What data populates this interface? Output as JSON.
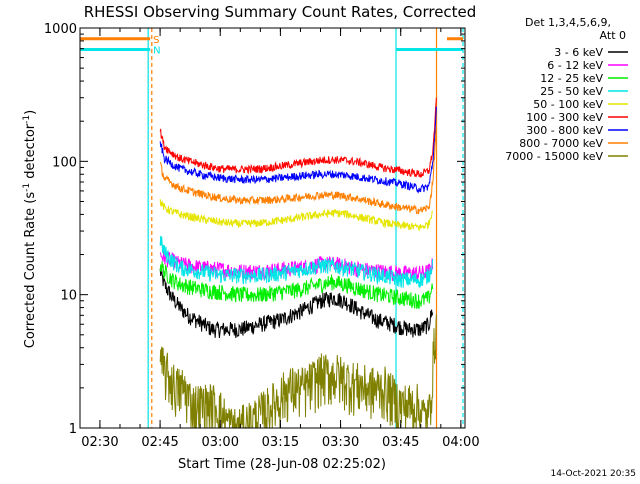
{
  "chart_data": {
    "type": "line",
    "title": "RHESSI Observing Summary Count Rates, Corrected",
    "xlabel": "Start Time (28-Jun-08 02:25:02)",
    "ylabel_main": "Corrected Count Rate (s",
    "ylabel_sup1": "-1",
    "ylabel_mid": " detector",
    "ylabel_sup2": "-1",
    "ylabel_end": ")",
    "y_scale": "log",
    "ylim": [
      1,
      1000
    ],
    "x_unit": "minutes after 02:25:02",
    "xlim": [
      0,
      96
    ],
    "x_ticks": [
      {
        "min": 4.97,
        "label": "02:30"
      },
      {
        "min": 19.97,
        "label": "02:45"
      },
      {
        "min": 34.97,
        "label": "03:00"
      },
      {
        "min": 49.97,
        "label": "03:15"
      },
      {
        "min": 64.97,
        "label": "03:30"
      },
      {
        "min": 79.97,
        "label": "03:45"
      },
      {
        "min": 94.97,
        "label": "04:00"
      }
    ],
    "y_ticks": [
      {
        "value": 1,
        "label": "1"
      },
      {
        "value": 10,
        "label": "10"
      },
      {
        "value": 100,
        "label": "100"
      },
      {
        "value": 1000,
        "label": "1000"
      }
    ],
    "legend_header": [
      "Det 1,3,4,5,6,9,",
      "Att 0"
    ],
    "legend_position": "right",
    "markers": [
      {
        "label": "S",
        "color": "#ff7f00",
        "segments": [
          [
            0,
            17.5
          ],
          [
            91.5,
            95.5
          ]
        ],
        "value": 830
      },
      {
        "label": "N",
        "color": "#00e5e5",
        "segments": [
          [
            0,
            17.5
          ],
          [
            78.8,
            95.5
          ]
        ],
        "value": 690
      }
    ],
    "vlines": [
      {
        "x": 17.0,
        "color": "#00e5e5",
        "style": "solid"
      },
      {
        "x": 17.9,
        "color": "#ff7f00",
        "style": "dashed"
      },
      {
        "x": 78.8,
        "color": "#00e5e5",
        "style": "solid"
      },
      {
        "x": 88.9,
        "color": "#ff7f00",
        "style": "solid"
      },
      {
        "x": 95.5,
        "color": "#00e5e5",
        "style": "dashed"
      }
    ],
    "series": [
      {
        "name": "3 - 6 keV",
        "color": "#000000",
        "x": [
          20,
          21,
          23,
          25,
          27,
          30,
          33,
          36,
          40,
          45,
          50,
          55,
          60,
          63,
          66,
          70,
          74,
          78,
          82,
          85,
          87,
          88
        ],
        "y": [
          15,
          12,
          9.5,
          8,
          7,
          6.2,
          5.5,
          5.5,
          5.5,
          6,
          6.5,
          7.5,
          9,
          9.5,
          9,
          7.5,
          6.5,
          6,
          5.5,
          5.5,
          6,
          8
        ]
      },
      {
        "name": "6 - 12 keV",
        "color": "#ff00ff",
        "x": [
          20,
          21,
          23,
          25,
          30,
          35,
          40,
          45,
          50,
          55,
          60,
          63,
          66,
          70,
          75,
          80,
          85,
          87,
          88
        ],
        "y": [
          20,
          19,
          18,
          17,
          16,
          15.5,
          15,
          15,
          15.5,
          16,
          17,
          17,
          16.5,
          15.5,
          15,
          14.5,
          14.5,
          15,
          17
        ]
      },
      {
        "name": "12 - 25 keV",
        "color": "#00ee00",
        "x": [
          20,
          21,
          23,
          25,
          30,
          35,
          40,
          45,
          50,
          55,
          60,
          63,
          66,
          70,
          75,
          80,
          85,
          87,
          88
        ],
        "y": [
          17,
          15,
          13,
          12,
          11,
          10.5,
          10,
          10,
          10.5,
          11,
          12,
          12.5,
          12,
          11,
          10,
          9.5,
          9,
          9.5,
          12
        ]
      },
      {
        "name": "25 - 50 keV",
        "color": "#00e5e5",
        "x": [
          20,
          21,
          23,
          25,
          30,
          35,
          40,
          45,
          50,
          55,
          60,
          63,
          66,
          70,
          75,
          80,
          85,
          87,
          88
        ],
        "y": [
          26,
          21,
          18,
          16,
          15,
          14,
          14,
          14,
          14.5,
          15.5,
          16.5,
          16.5,
          16,
          15,
          14,
          13,
          13,
          14,
          18
        ]
      },
      {
        "name": "50 - 100 keV",
        "color": "#e5e500",
        "x": [
          20,
          21,
          23,
          25,
          30,
          35,
          40,
          45,
          50,
          55,
          60,
          63,
          66,
          70,
          75,
          80,
          85,
          87,
          88
        ],
        "y": [
          50,
          45,
          42,
          40,
          37,
          35,
          34,
          34.5,
          36,
          38,
          40,
          41,
          40.5,
          38,
          35,
          33,
          32,
          34,
          45
        ]
      },
      {
        "name": "100 - 300 keV",
        "color": "#ff0000",
        "x": [
          20,
          21,
          23,
          25,
          30,
          35,
          40,
          45,
          50,
          55,
          60,
          63,
          66,
          70,
          75,
          80,
          85,
          87,
          88,
          89
        ],
        "y": [
          170,
          130,
          115,
          105,
          95,
          88,
          87,
          88,
          92,
          97,
          102,
          103,
          102,
          98,
          90,
          85,
          80,
          85,
          120,
          330
        ]
      },
      {
        "name": "300 - 800 keV",
        "color": "#0000ff",
        "x": [
          20,
          21,
          23,
          25,
          30,
          35,
          40,
          45,
          50,
          55,
          60,
          63,
          66,
          70,
          75,
          80,
          85,
          87,
          88,
          89
        ],
        "y": [
          140,
          105,
          95,
          88,
          80,
          75,
          73,
          73,
          75,
          78,
          80,
          80,
          79,
          76,
          72,
          68,
          62,
          65,
          100,
          280
        ]
      },
      {
        "name": "800 - 7000 keV",
        "color": "#ff7f00",
        "x": [
          20,
          21,
          23,
          25,
          30,
          35,
          40,
          45,
          50,
          55,
          60,
          63,
          66,
          70,
          75,
          80,
          85,
          87,
          88,
          89
        ],
        "y": [
          95,
          75,
          68,
          63,
          57,
          53,
          51,
          51,
          52,
          54,
          56,
          56,
          55,
          52,
          48,
          45,
          43,
          45,
          70,
          220
        ]
      },
      {
        "name": "7000 - 15000 keV",
        "color": "#808000",
        "x": [
          20,
          22,
          24,
          26,
          28,
          30,
          32,
          34,
          36,
          38,
          40,
          44,
          48,
          52,
          56,
          60,
          64,
          68,
          72,
          76,
          80,
          84,
          86,
          87,
          88,
          89
        ],
        "y": [
          3,
          2.5,
          2,
          2,
          1.5,
          1.5,
          1.5,
          1.5,
          1.2,
          1,
          1,
          1.2,
          1.5,
          2,
          2,
          2.5,
          2.5,
          2.2,
          2,
          2,
          1.5,
          1.5,
          1.2,
          1.2,
          3,
          8
        ]
      }
    ]
  },
  "footer": {
    "date": "14-Oct-2021 20:35"
  }
}
